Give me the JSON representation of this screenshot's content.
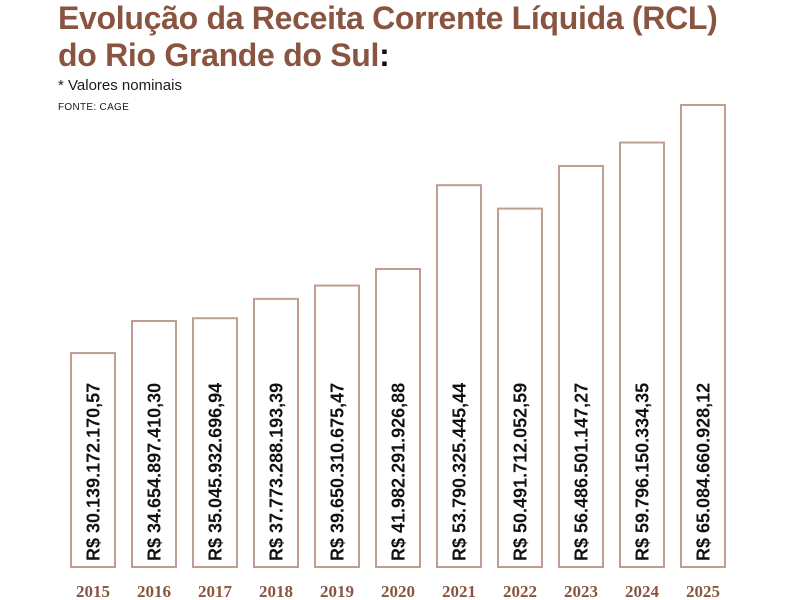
{
  "header": {
    "title_line1": "Evolução da Receita Corrente Líquida (RCL)",
    "title_line2": "do Rio Grande do Sul",
    "title_colon": ":",
    "note": "* Valores nominais",
    "source": "FONTE: CAGE"
  },
  "colors": {
    "accent": "#8a5540",
    "bar_stroke": "#bf9d90",
    "text": "#111111"
  },
  "chart_data": {
    "type": "bar",
    "categories": [
      "2015",
      "2016",
      "2017",
      "2018",
      "2019",
      "2020",
      "2021",
      "2022",
      "2023",
      "2024",
      "2025"
    ],
    "values": [
      30139172170.57,
      34654897410.3,
      35045932696.94,
      37773288193.39,
      39650310675.47,
      41982291926.88,
      53790325445.44,
      50491712052.59,
      56486501147.27,
      59796150334.35,
      65084660928.12
    ],
    "data_labels": [
      "R$ 30.139.172.170,57",
      "R$ 34.654.897.410,30",
      "R$ 35.045.932.696,94",
      "R$ 37.773.288.193,39",
      "R$ 39.650.310.675,47",
      "R$ 41.982.291.926,88",
      "R$ 53.790.325.445,44",
      "R$ 50.491.712.052,59",
      "R$ 56.486.501.147,27",
      "R$ 59.796.150.334,35",
      "R$ 65.084.660.928,12"
    ],
    "title": "Evolução da Receita Corrente Líquida (RCL) do Rio Grande do Sul",
    "xlabel": "",
    "ylabel": "",
    "grid": false,
    "legend": "none"
  }
}
